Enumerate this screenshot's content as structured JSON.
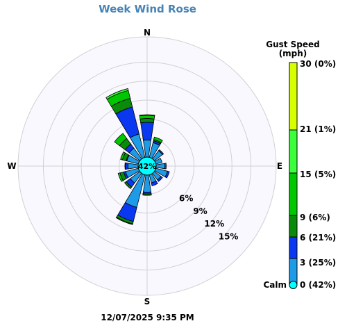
{
  "title": "Week Wind Rose",
  "timestamp": "12/07/2025 9:35 PM",
  "directions": {
    "n": "N",
    "e": "E",
    "s": "S",
    "w": "W"
  },
  "chart_data": {
    "type": "wind-rose",
    "title": "Week Wind Rose",
    "calm_percent": 42,
    "calm_label": "42%",
    "radial_ticks": [
      {
        "value": 6,
        "label": "6%"
      },
      {
        "value": 9,
        "label": "9%"
      },
      {
        "value": 12,
        "label": "12%"
      },
      {
        "value": 15,
        "label": "15%"
      }
    ],
    "radial_max": 19,
    "legend": {
      "title_line1": "Gust Speed",
      "title_line2": "(mph)",
      "bins": [
        {
          "label": "Calm",
          "value_label": "0 (42%)",
          "color": "#00ffff"
        },
        {
          "label": "3 (25%)",
          "color": "#1e9be6"
        },
        {
          "label": "6 (21%)",
          "color": "#0a37f0"
        },
        {
          "label": "9 (6%)",
          "color": "#0a8c0a"
        },
        {
          "label": "15 (5%)",
          "color": "#00c800"
        },
        {
          "label": "21 (1%)",
          "color": "#3cff3c"
        },
        {
          "label": "30 (0%)",
          "color": "#d8ff00"
        }
      ]
    },
    "segment_colors": [
      "#1e9be6",
      "#0a37f0",
      "#0a8c0a",
      "#00c800",
      "#3cff3c"
    ],
    "series": [
      {
        "direction": "N",
        "bands": [
          2.7,
          5.5,
          6.1,
          6.6,
          6.7
        ]
      },
      {
        "direction": "NNE",
        "bands": [
          2.4,
          2.7,
          2.9,
          3.3,
          3.3
        ]
      },
      {
        "direction": "NE",
        "bands": [
          1.6,
          1.8,
          1.8,
          1.8,
          1.8
        ]
      },
      {
        "direction": "ENE",
        "bands": [
          1.0,
          1.0,
          1.0,
          1.0,
          1.0
        ]
      },
      {
        "direction": "E",
        "bands": [
          1.4,
          1.6,
          1.6,
          1.6,
          1.6
        ]
      },
      {
        "direction": "ESE",
        "bands": [
          1.9,
          2.2,
          2.2,
          2.2,
          2.2
        ]
      },
      {
        "direction": "SE",
        "bands": [
          1.3,
          1.6,
          1.6,
          1.6,
          1.6
        ]
      },
      {
        "direction": "SSE",
        "bands": [
          1.3,
          1.8,
          1.8,
          1.8,
          1.8
        ]
      },
      {
        "direction": "S",
        "bands": [
          2.7,
          3.0,
          3.2,
          3.2,
          3.2
        ]
      },
      {
        "direction": "SSW",
        "bands": [
          5.3,
          7.6,
          8.0,
          8.1,
          8.1
        ]
      },
      {
        "direction": "SW",
        "bands": [
          1.9,
          2.7,
          3.0,
          3.0,
          3.0
        ]
      },
      {
        "direction": "WSW",
        "bands": [
          2.1,
          2.4,
          3.0,
          3.3,
          3.3
        ]
      },
      {
        "direction": "W",
        "bands": [
          1.6,
          2.0,
          2.1,
          2.1,
          2.1
        ]
      },
      {
        "direction": "WNW",
        "bands": [
          1.9,
          2.0,
          2.6,
          2.9,
          2.9
        ]
      },
      {
        "direction": "NW",
        "bands": [
          2.1,
          2.9,
          4.0,
          5.0,
          5.0
        ]
      },
      {
        "direction": "NNW",
        "bands": [
          3.8,
          8.2,
          9.6,
          10.9,
          11.2
        ]
      }
    ]
  }
}
